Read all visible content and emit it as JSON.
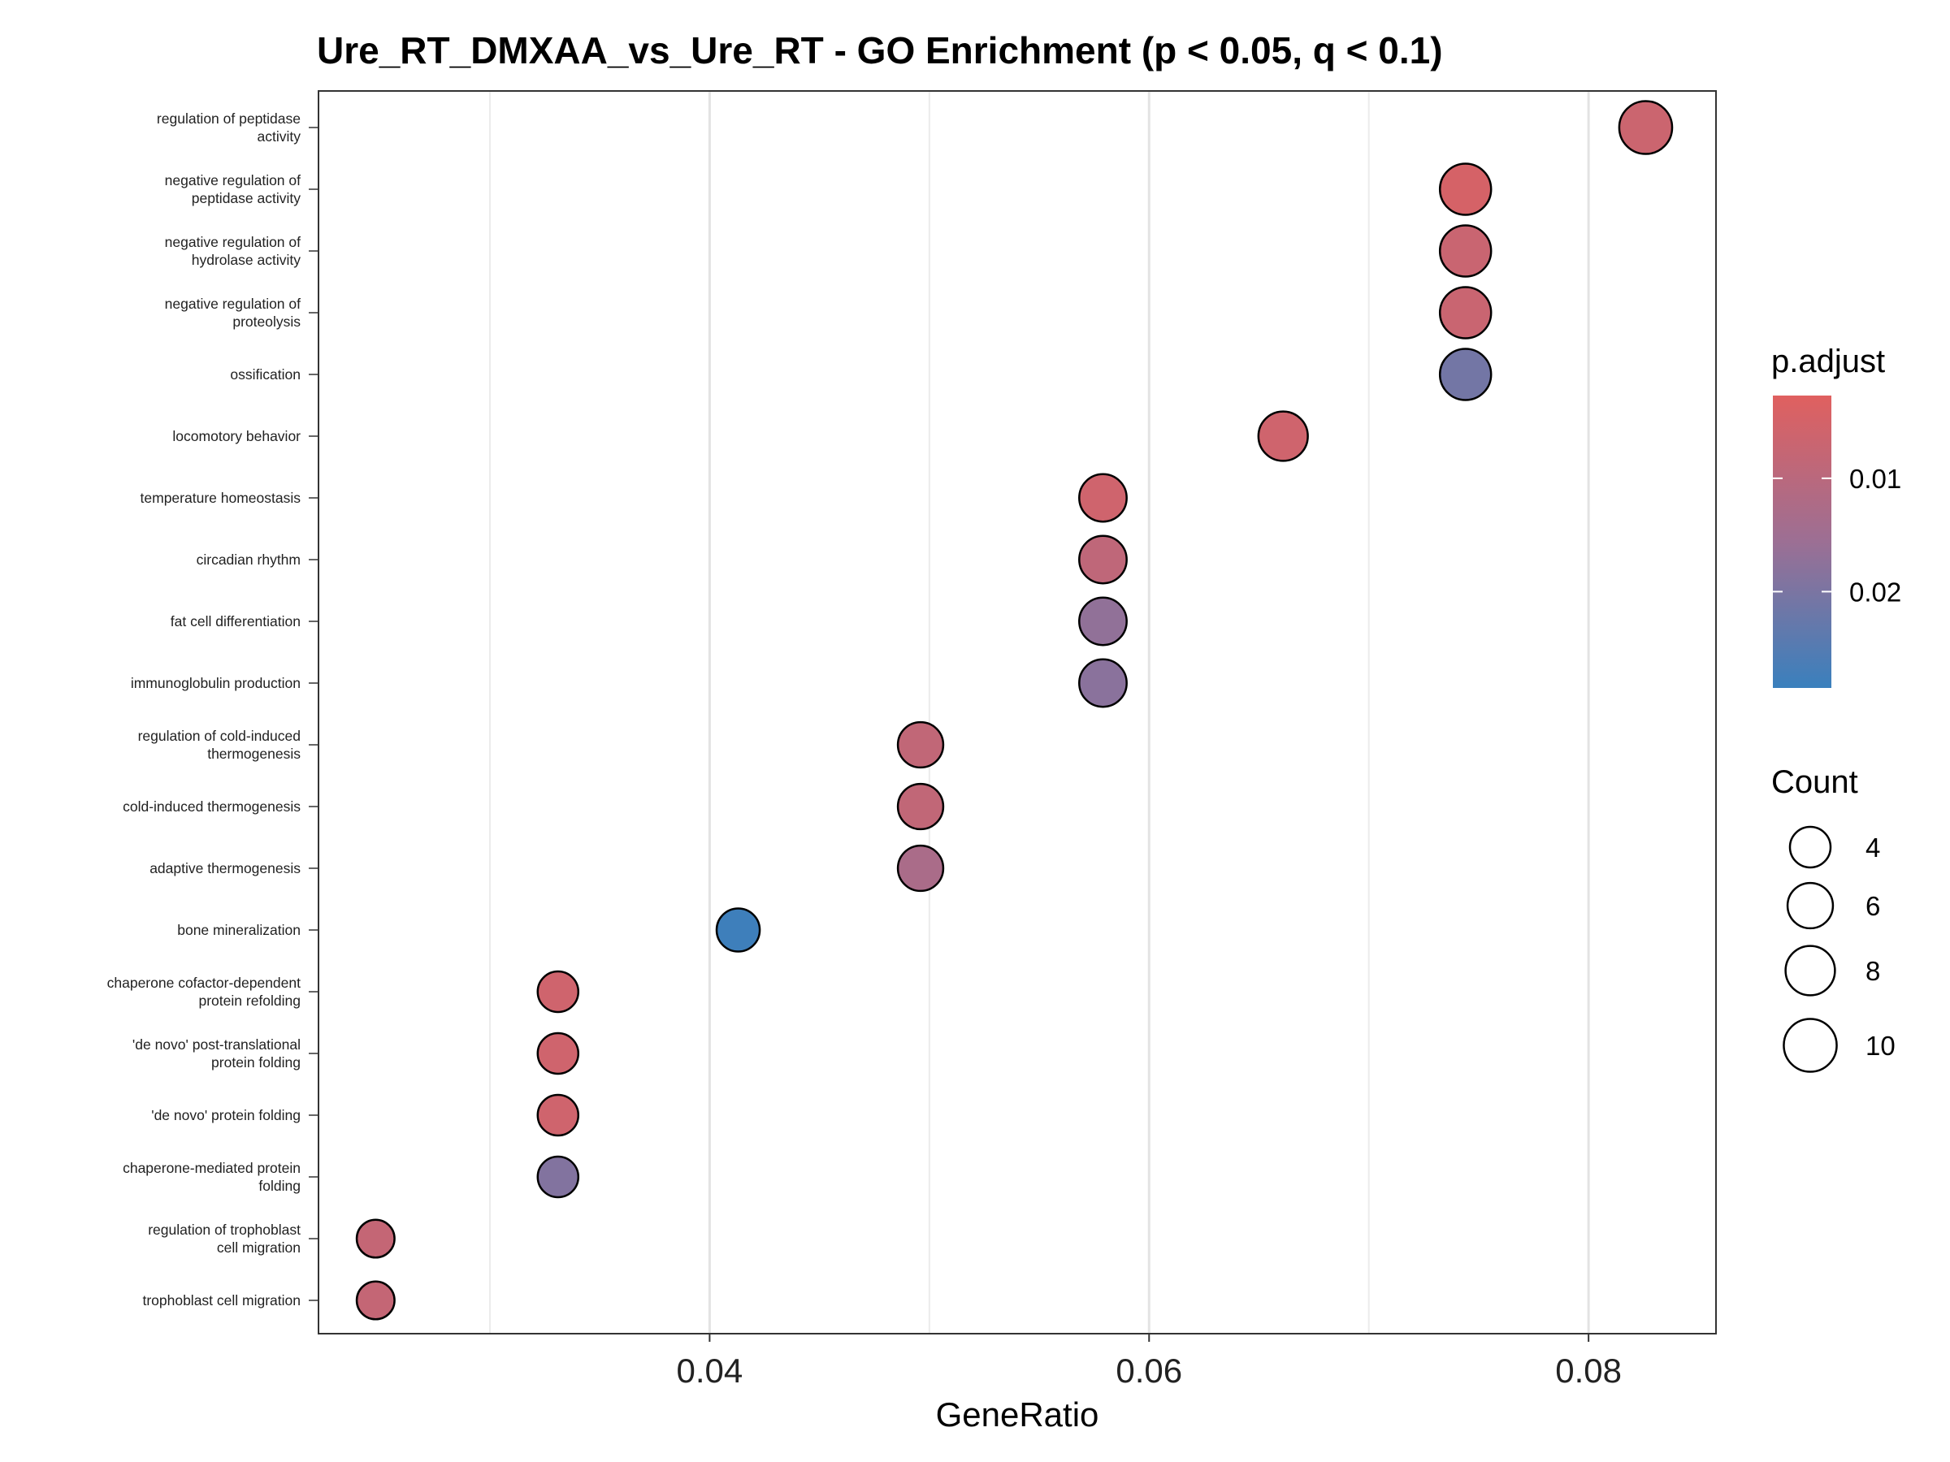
{
  "chart_data": {
    "type": "scatter",
    "title": "Ure_RT_DMXAA_vs_Ure_RT - GO Enrichment (p < 0.05, q < 0.1)",
    "xlabel": "GeneRatio",
    "ylabel": "",
    "xlim": [
      0.0222,
      0.0858
    ],
    "xticks": [
      "0.04",
      "0.06",
      "0.08"
    ],
    "xtick_values": [
      0.04,
      0.06,
      0.08
    ],
    "grid": true,
    "terms": [
      {
        "label": [
          "regulation of peptidase",
          "activity"
        ],
        "gene_ratio": 0.0826,
        "count": 10,
        "p_adjust": 0.0066
      },
      {
        "label": [
          "negative regulation of",
          "peptidase activity"
        ],
        "gene_ratio": 0.0744,
        "count": 9,
        "p_adjust": 0.0047
      },
      {
        "label": [
          "negative regulation of",
          "hydrolase activity"
        ],
        "gene_ratio": 0.0744,
        "count": 9,
        "p_adjust": 0.007
      },
      {
        "label": [
          "negative regulation of",
          "proteolysis"
        ],
        "gene_ratio": 0.0744,
        "count": 9,
        "p_adjust": 0.007
      },
      {
        "label": [
          "ossification"
        ],
        "gene_ratio": 0.0744,
        "count": 9,
        "p_adjust": 0.021
      },
      {
        "label": [
          "locomotory behavior"
        ],
        "gene_ratio": 0.0661,
        "count": 8,
        "p_adjust": 0.006
      },
      {
        "label": [
          "temperature homeostasis"
        ],
        "gene_ratio": 0.0579,
        "count": 7,
        "p_adjust": 0.006
      },
      {
        "label": [
          "circadian rhythm"
        ],
        "gene_ratio": 0.0579,
        "count": 7,
        "p_adjust": 0.009
      },
      {
        "label": [
          "fat cell differentiation"
        ],
        "gene_ratio": 0.0579,
        "count": 7,
        "p_adjust": 0.017
      },
      {
        "label": [
          "immunoglobulin production"
        ],
        "gene_ratio": 0.0579,
        "count": 7,
        "p_adjust": 0.018
      },
      {
        "label": [
          "regulation of cold-induced",
          "thermogenesis"
        ],
        "gene_ratio": 0.0496,
        "count": 6,
        "p_adjust": 0.0085
      },
      {
        "label": [
          "cold-induced thermogenesis"
        ],
        "gene_ratio": 0.0496,
        "count": 6,
        "p_adjust": 0.0085
      },
      {
        "label": [
          "adaptive thermogenesis"
        ],
        "gene_ratio": 0.0496,
        "count": 6,
        "p_adjust": 0.013
      },
      {
        "label": [
          "bone mineralization"
        ],
        "gene_ratio": 0.0413,
        "count": 5,
        "p_adjust": 0.028
      },
      {
        "label": [
          "chaperone cofactor-dependent",
          "protein refolding"
        ],
        "gene_ratio": 0.0331,
        "count": 4,
        "p_adjust": 0.006
      },
      {
        "label": [
          "'de novo' post-translational",
          "protein folding"
        ],
        "gene_ratio": 0.0331,
        "count": 4,
        "p_adjust": 0.006
      },
      {
        "label": [
          "'de novo' protein folding"
        ],
        "gene_ratio": 0.0331,
        "count": 4,
        "p_adjust": 0.006
      },
      {
        "label": [
          "chaperone-mediated protein",
          "folding"
        ],
        "gene_ratio": 0.0331,
        "count": 4,
        "p_adjust": 0.019
      },
      {
        "label": [
          "regulation of trophoblast",
          "cell migration"
        ],
        "gene_ratio": 0.0248,
        "count": 3,
        "p_adjust": 0.008
      },
      {
        "label": [
          "trophoblast cell migration"
        ],
        "gene_ratio": 0.0248,
        "count": 3,
        "p_adjust": 0.008
      }
    ],
    "color_legend": {
      "title": "p.adjust",
      "range": [
        0.0027,
        0.0285
      ],
      "ticks": [
        "0.01",
        "0.02"
      ],
      "tick_values": [
        0.01,
        0.02
      ],
      "low_color": "#e0605f",
      "mid_color": "#9c6f94",
      "high_color": "#3a80bd"
    },
    "size_legend": {
      "title": "Count",
      "values": [
        "4",
        "6",
        "8",
        "10"
      ],
      "count_values": [
        4,
        6,
        8,
        10
      ]
    },
    "legend_position": "right"
  }
}
